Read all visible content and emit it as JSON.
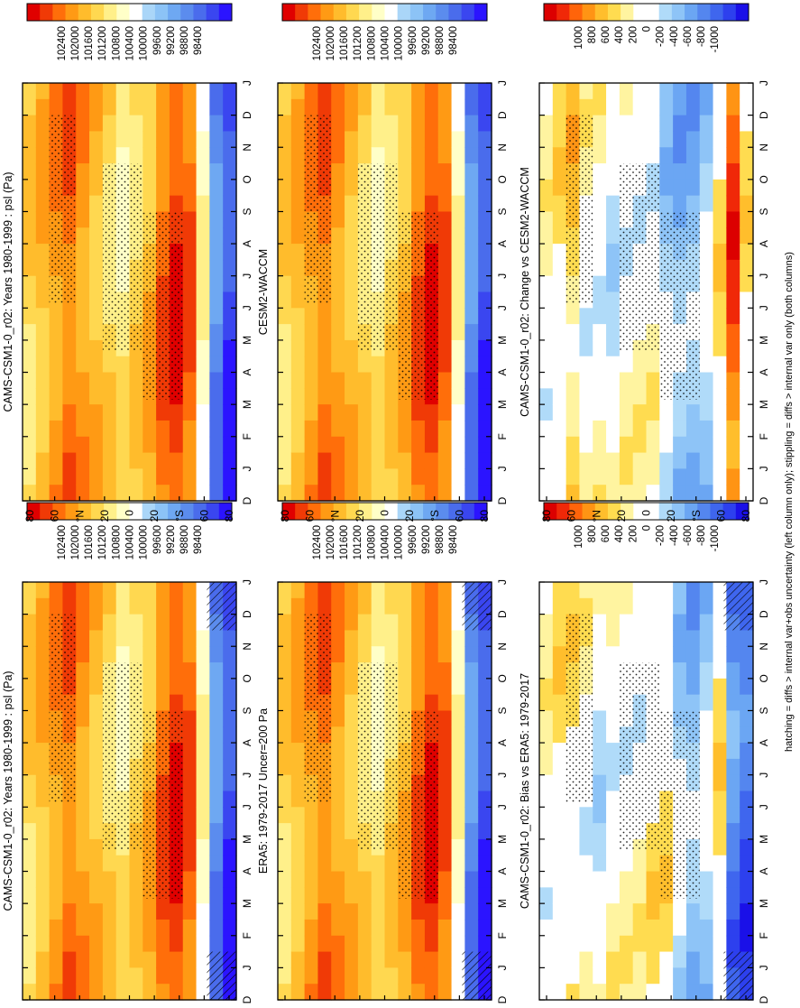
{
  "footnote": "hatching = diffs > internal var+obs uncertainty (left column only); stippling = diffs > internal var only (both columns)",
  "colors": {
    "psl_scale": [
      "#2b14ff",
      "#3a46f0",
      "#4a6cec",
      "#5b8cee",
      "#6ea8f2",
      "#8cc3f6",
      "#aad6f8",
      "#ffffff",
      "#ffffc8",
      "#fff08a",
      "#ffd850",
      "#ffbc2c",
      "#ff9a14",
      "#ff6e0a",
      "#f03a06",
      "#e00000"
    ],
    "diff_scale": [
      "#1a10e8",
      "#2d40ee",
      "#3f66ee",
      "#5486ef",
      "#6ba6f3",
      "#8ec4f7",
      "#b0dbf9",
      "#ffffff",
      "#ffffff",
      "#fff4a0",
      "#ffdc50",
      "#ffbe2c",
      "#ff9414",
      "#ff640a",
      "#f02808",
      "#dc0000"
    ]
  },
  "chart_data": [
    {
      "type": "heatmap",
      "title": "CAMS-CSM1-0_r02: Years 1980-1999 : psl (Pa)",
      "x_ticks": [
        "D",
        "J",
        "F",
        "M",
        "A",
        "M",
        "J",
        "J",
        "A",
        "S",
        "O",
        "N",
        "D",
        "J"
      ],
      "y_ticks": [
        "80",
        "60",
        "°N",
        "20",
        "0",
        "20",
        "°S",
        "60",
        "80"
      ],
      "colorbar_ticks": [
        "102400",
        "102000",
        "101600",
        "101200",
        "100800",
        "100400",
        "100000",
        "99600",
        "99200",
        "98800",
        "98400"
      ],
      "scale": "psl",
      "hatched": true
    },
    {
      "type": "heatmap",
      "title": "CAMS-CSM1-0_r02: Years 1980-1999 : psl (Pa)",
      "x_ticks": [
        "D",
        "J",
        "F",
        "M",
        "A",
        "M",
        "J",
        "J",
        "A",
        "S",
        "O",
        "N",
        "D",
        "J"
      ],
      "y_ticks": [
        "80",
        "60",
        "°N",
        "20",
        "0",
        "20",
        "°S",
        "60",
        "80"
      ],
      "colorbar_ticks": [
        "102400",
        "102000",
        "101600",
        "101200",
        "100800",
        "100400",
        "100000",
        "99600",
        "99200",
        "98800",
        "98400"
      ],
      "scale": "psl",
      "hatched": false
    },
    {
      "type": "heatmap",
      "title": "ERA5: 1979-2017 Uncer=200 Pa",
      "x_ticks": [
        "D",
        "J",
        "F",
        "M",
        "A",
        "M",
        "J",
        "J",
        "A",
        "S",
        "O",
        "N",
        "D",
        "J"
      ],
      "y_ticks": [
        "80",
        "60",
        "°N",
        "20",
        "0",
        "20",
        "°S",
        "60",
        "80"
      ],
      "colorbar_ticks": [
        "102400",
        "102000",
        "101600",
        "101200",
        "100800",
        "100400",
        "100000",
        "99600",
        "99200",
        "98800",
        "98400"
      ],
      "scale": "psl",
      "hatched": true
    },
    {
      "type": "heatmap",
      "title": "CESM2-WACCM",
      "x_ticks": [
        "D",
        "J",
        "F",
        "M",
        "A",
        "M",
        "J",
        "J",
        "A",
        "S",
        "O",
        "N",
        "D",
        "J"
      ],
      "y_ticks": [
        "80",
        "60",
        "°N",
        "20",
        "0",
        "20",
        "°S",
        "60",
        "80"
      ],
      "colorbar_ticks": [
        "102400",
        "102000",
        "101600",
        "101200",
        "100800",
        "100400",
        "100000",
        "99600",
        "99200",
        "98800",
        "98400"
      ],
      "scale": "psl",
      "hatched": false
    },
    {
      "type": "heatmap",
      "title": "CAMS-CSM1-0_r02: Bias vs ERA5: 1979-2017",
      "x_ticks": [
        "D",
        "J",
        "F",
        "M",
        "A",
        "M",
        "J",
        "J",
        "A",
        "S",
        "O",
        "N",
        "D",
        "J"
      ],
      "y_ticks": [
        "80",
        "60",
        "°N",
        "20",
        "0",
        "20",
        "°S",
        "60",
        "80"
      ],
      "colorbar_ticks": [
        "1000",
        "800",
        "600",
        "400",
        "200",
        "0",
        "-200",
        "-400",
        "-600",
        "-800",
        "-1000"
      ],
      "scale": "diff",
      "hatched": true
    },
    {
      "type": "heatmap",
      "title": "CAMS-CSM1-0_r02: Change vs CESM2-WACCM",
      "x_ticks": [
        "D",
        "J",
        "F",
        "M",
        "A",
        "M",
        "J",
        "J",
        "A",
        "S",
        "O",
        "N",
        "D",
        "J"
      ],
      "y_ticks": [
        "80",
        "60",
        "°N",
        "20",
        "0",
        "20",
        "°S",
        "60",
        "80"
      ],
      "colorbar_ticks": [
        "1000",
        "800",
        "600",
        "400",
        "200",
        "0",
        "-200",
        "-400",
        "-600",
        "-800",
        "-1000"
      ],
      "scale": "diff",
      "hatched": false
    }
  ]
}
